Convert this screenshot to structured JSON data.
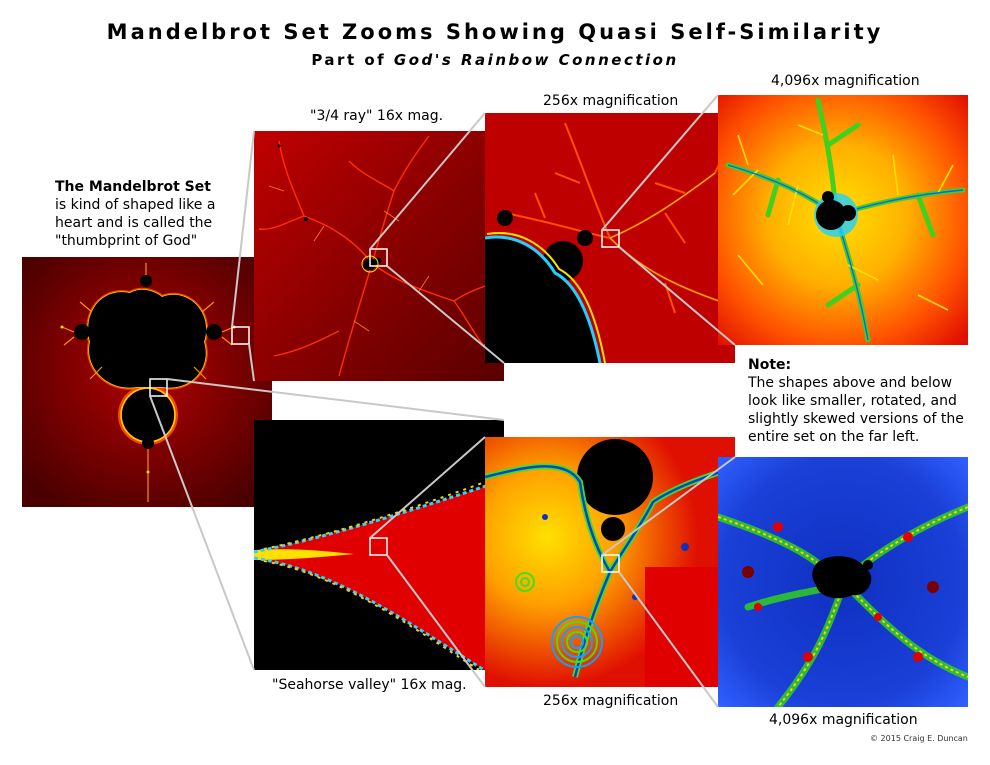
{
  "header": {
    "title": "Mandelbrot Set Zooms Showing Quasi Self-Similarity",
    "subtitle_prefix": "Part of ",
    "subtitle_italic": "God's Rainbow Connection"
  },
  "intro": {
    "heading": "The Mandelbrot Set",
    "body": "is kind of shaped like a heart and is called the \"thumbprint of God\""
  },
  "note": {
    "heading": "Note:",
    "body": "The shapes above and below look like smaller, rotated, and slightly skewed versions of the entire set on the far left."
  },
  "captions": {
    "ray16": "\"3/4 ray\" 16x mag.",
    "ray256": "256x magnification",
    "ray4096": "4,096x magnification",
    "sea16": "\"Seahorse valley\" 16x mag.",
    "sea256": "256x magnification",
    "sea4096": "4,096x magnification"
  },
  "credit": "© 2015 Craig E. Duncan",
  "colors": {
    "deep_red": "#6a0000",
    "red": "#d40000",
    "orange": "#ff7a00",
    "yellow": "#ffe000",
    "green": "#40e020",
    "blue": "#1030c0",
    "connector": "#c8c8c8"
  }
}
